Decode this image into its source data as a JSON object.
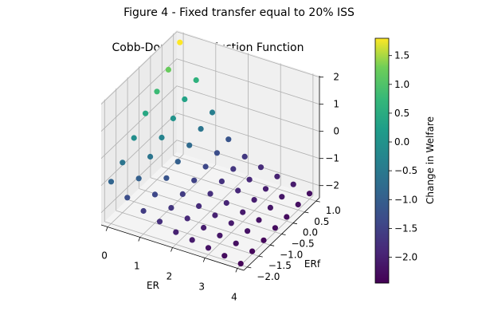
{
  "figure_title": "Figure 4 - Fixed transfer equal to 20% ISS",
  "chart_data": {
    "type": "scatter",
    "title": "Cobb-Douglas Production Function",
    "xlabel": "ER",
    "ylabel": "ERf",
    "zlabel": "",
    "colorbar_label": "Change in Welfare",
    "colormap": "viridis",
    "xlim": [
      -0.2,
      4.2
    ],
    "ylim": [
      -2.15,
      1.15
    ],
    "zlim": [
      -2.45,
      2.05
    ],
    "clim": [
      -2.45,
      1.8
    ],
    "x_ticks": [
      0,
      1,
      2,
      3,
      4
    ],
    "y_ticks": [
      -2.0,
      -1.5,
      -1.0,
      -0.5,
      0.0,
      0.5,
      1.0
    ],
    "z_ticks": [
      -2,
      -1,
      0,
      1,
      2
    ],
    "colorbar_ticks": [
      -2.0,
      -1.5,
      -1.0,
      -0.5,
      0.0,
      0.5,
      1.0,
      1.5
    ],
    "x_tick_labels": [
      "0",
      "1",
      "2",
      "3",
      "4"
    ],
    "y_tick_labels": [
      "−2.0",
      "−1.5",
      "−1.0",
      "−0.5",
      "0.0",
      "0.5",
      "1.0"
    ],
    "z_tick_labels": [
      "−2",
      "−1",
      "0",
      "1",
      "2"
    ],
    "colorbar_tick_labels": [
      "−2.0",
      "−1.5",
      "−1.0",
      "−0.5",
      "0.0",
      "0.5",
      "1.0",
      "1.5"
    ],
    "grid": true,
    "points": {
      "description_of_grid": "ER values crossed with ERf values; color and height both encode Change in Welfare",
      "er_values": [
        0,
        0.5,
        1,
        1.5,
        2,
        2.5,
        3,
        3.5,
        4
      ],
      "erf_values": [
        -2.0,
        -1.5,
        -1.0,
        -0.5,
        0.0,
        0.5,
        1.0
      ],
      "welfare": [
        [
          -0.9,
          -0.6,
          -0.1,
          0.4,
          0.8,
          1.2,
          1.8
        ],
        [
          -1.3,
          -1.0,
          -0.6,
          -0.3,
          0.0,
          0.3,
          0.6
        ],
        [
          -1.6,
          -1.4,
          -1.2,
          -1.0,
          -0.8,
          -0.6,
          -0.4
        ],
        [
          -1.8,
          -1.7,
          -1.6,
          -1.5,
          -1.4,
          -1.3,
          -1.2
        ],
        [
          -2.0,
          -1.9,
          -1.85,
          -1.8,
          -1.75,
          -1.7,
          -1.65
        ],
        [
          -2.1,
          -2.05,
          -2.0,
          -1.95,
          -1.9,
          -1.9,
          -1.85
        ],
        [
          -2.2,
          -2.15,
          -2.1,
          -2.1,
          -2.05,
          -2.05,
          -2.0
        ],
        [
          -2.3,
          -2.25,
          -2.2,
          -2.2,
          -2.15,
          -2.15,
          -2.1
        ],
        [
          -2.4,
          -2.35,
          -2.35,
          -2.3,
          -2.3,
          -2.25,
          -2.25
        ]
      ]
    }
  }
}
